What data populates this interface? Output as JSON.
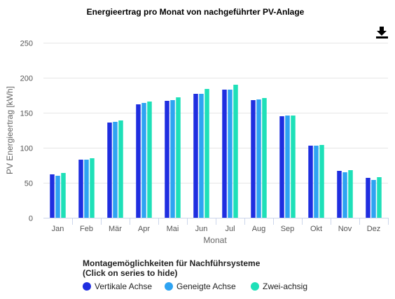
{
  "chart_data": {
    "type": "bar",
    "title": "Energieertrag pro Monat von nachgeführter PV-Anlage",
    "xlabel": "Monat",
    "ylabel": "PV Energieertrag [kWh]",
    "ylim": [
      0,
      250
    ],
    "yticks": [
      0,
      50,
      100,
      150,
      200,
      250
    ],
    "grid": true,
    "categories": [
      "Jan",
      "Feb",
      "Mär",
      "Apr",
      "Mai",
      "Jun",
      "Jul",
      "Aug",
      "Sep",
      "Okt",
      "Nov",
      "Dez"
    ],
    "series": [
      {
        "name": "Vertikale Achse",
        "color": "#1f2ee0",
        "values": [
          62,
          83,
          136,
          162,
          167,
          177,
          183,
          168,
          145,
          103,
          67,
          57
        ]
      },
      {
        "name": "Geneigte Achse",
        "color": "#2ea3f2",
        "values": [
          60,
          83,
          137,
          164,
          168,
          177,
          183,
          169,
          146,
          103,
          65,
          54
        ]
      },
      {
        "name": "Zwei-achsig",
        "color": "#1ee0b8",
        "values": [
          64,
          85,
          139,
          166,
          172,
          184,
          190,
          171,
          146,
          104,
          68,
          58
        ]
      }
    ],
    "legend": {
      "title_line1": "Montagemöglichkeiten für Nachführsysteme",
      "title_line2": "(Click on series to hide)",
      "position": "bottom-left"
    }
  },
  "toolbar": {
    "download_icon": "download-icon"
  }
}
